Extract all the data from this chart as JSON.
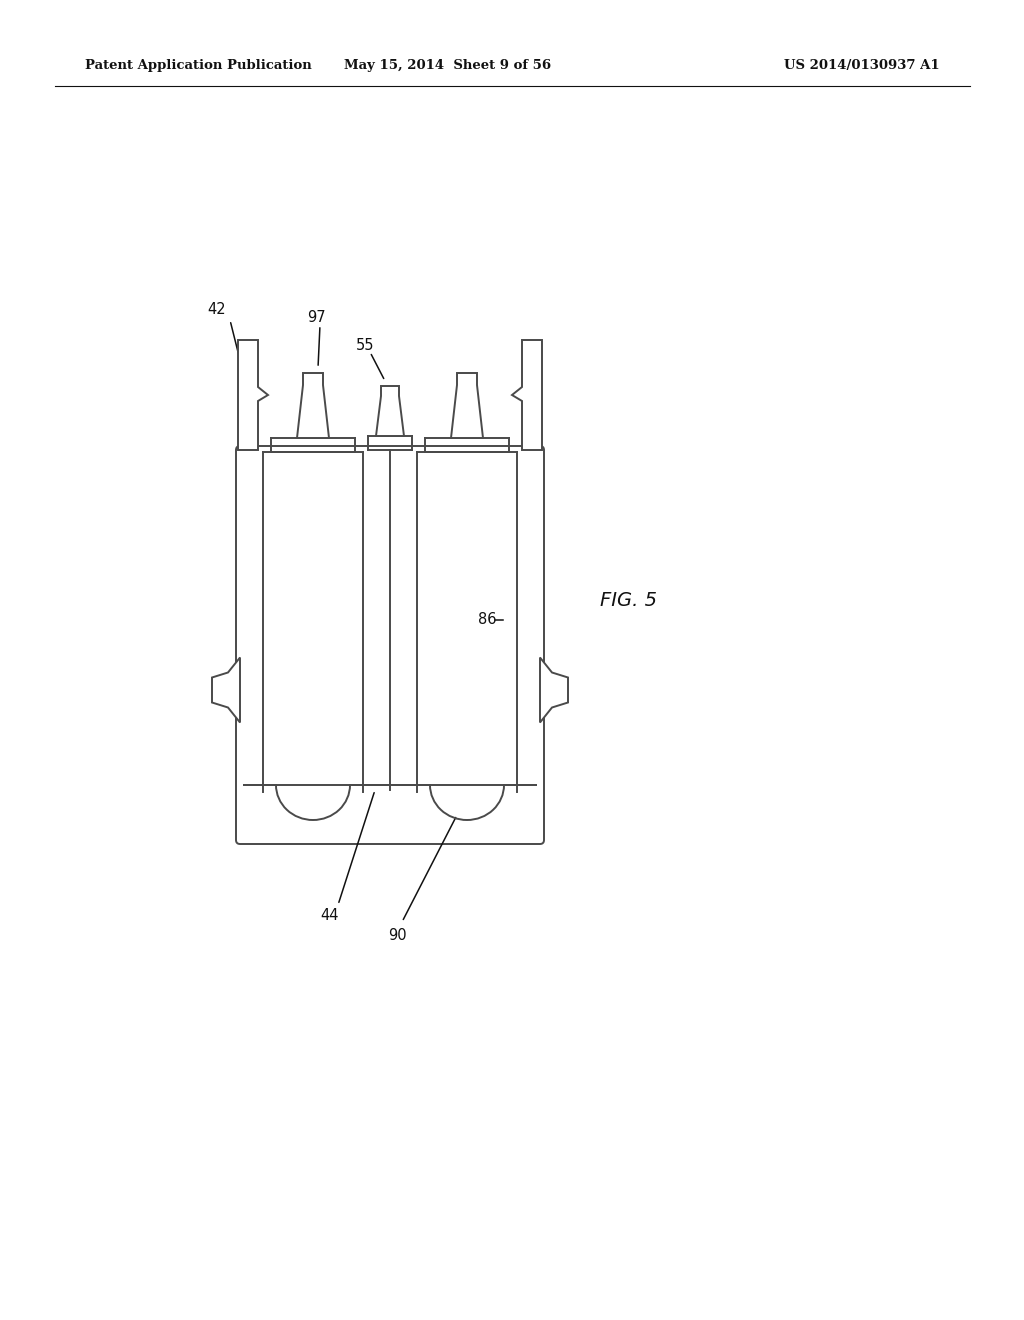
{
  "bg_color": "#ffffff",
  "line_color": "#4a4a4a",
  "header_left": "Patent Application Publication",
  "header_center": "May 15, 2014  Sheet 9 of 56",
  "header_right": "US 2014/0130937 A1",
  "fig_label": "FIG. 5"
}
